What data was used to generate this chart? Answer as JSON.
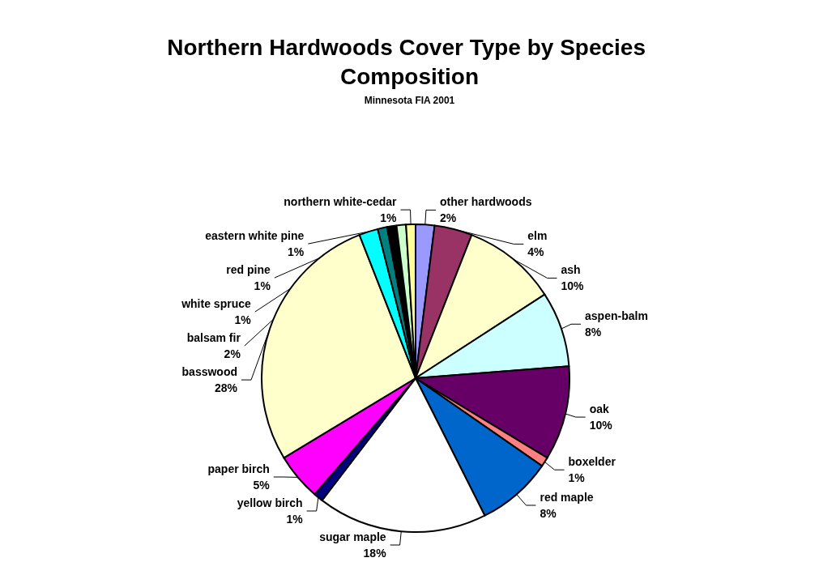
{
  "chart_data": {
    "type": "pie",
    "title": "Northern Hardwoods Cover Type by Species Composition",
    "subtitle": "Minnesota FIA 2001",
    "categories": [
      "other hardwoods",
      "elm",
      "ash",
      "aspen-balm",
      "oak",
      "boxelder",
      "red maple",
      "sugar maple",
      "yellow birch",
      "paper birch",
      "basswood",
      "balsam fir",
      "white spruce",
      "red pine",
      "eastern white pine",
      "northern white-cedar"
    ],
    "values": [
      2,
      4,
      10,
      8,
      10,
      1,
      8,
      18,
      1,
      5,
      28,
      2,
      1,
      1,
      1,
      1
    ],
    "colors": [
      "#9999ff",
      "#993366",
      "#ffffcc",
      "#ccffff",
      "#660066",
      "#ff8080",
      "#0066cc",
      "#ffffff",
      "#000080",
      "#ff00ff",
      "#ffffcc",
      "#00ffff",
      "#008080",
      "#000000",
      "#ccffcc",
      "#ffff99"
    ],
    "value_labels": [
      "2%",
      "4%",
      "10%",
      "8%",
      "10%",
      "1%",
      "8%",
      "18%",
      "1%",
      "5%",
      "28%",
      "2%",
      "1%",
      "1%",
      "1%",
      "1%"
    ],
    "legend": false
  }
}
